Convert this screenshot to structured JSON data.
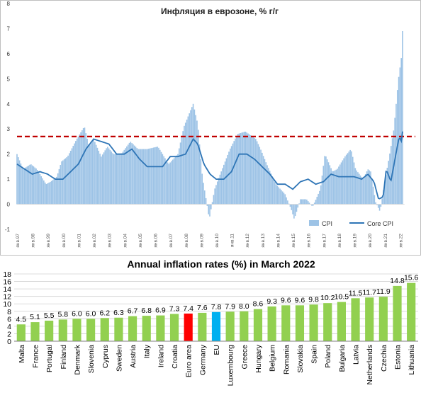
{
  "chart_data": [
    {
      "type": "area",
      "title": "Инфляция в еврозоне, % г/г",
      "xlabel": "",
      "ylabel": "",
      "ylim": [
        -1,
        8
      ],
      "y_ticks": [
        "-1",
        "0",
        "1",
        "2",
        "3",
        "4",
        "5",
        "6",
        "7",
        "8"
      ],
      "x_tick_labels": [
        "янв.97",
        "янв.98",
        "янв.99",
        "янв.00",
        "янв.01",
        "янв.02",
        "янв.03",
        "янв.04",
        "янв.05",
        "янв.06",
        "янв.07",
        "янв.08",
        "янв.09",
        "янв.10",
        "янв.11",
        "янв.12",
        "янв.13",
        "янв.14",
        "янв.15",
        "янв.16",
        "янв.17",
        "янв.18",
        "янв.19",
        "янв.20",
        "янв.21",
        "янв.22"
      ],
      "x_start_year": 1997,
      "reference_line": {
        "value": 2.7,
        "color": "#c00000",
        "style": "dashed"
      },
      "legend": {
        "position": "bottom-right",
        "entries": [
          "CPI",
          "Core CPI"
        ]
      },
      "grid": false,
      "series": [
        {
          "name": "CPI",
          "render": "bars",
          "color": "#9dc3e6",
          "anchors": [
            [
              1997.0,
              2.0
            ],
            [
              1997.4,
              1.4
            ],
            [
              1997.9,
              1.6
            ],
            [
              1998.3,
              1.4
            ],
            [
              1998.9,
              0.8
            ],
            [
              1999.2,
              0.9
            ],
            [
              1999.6,
              1.1
            ],
            [
              1999.9,
              1.7
            ],
            [
              2000.3,
              1.9
            ],
            [
              2000.9,
              2.6
            ],
            [
              2001.4,
              3.1
            ],
            [
              2001.7,
              2.3
            ],
            [
              2002.0,
              2.6
            ],
            [
              2002.5,
              1.9
            ],
            [
              2002.9,
              2.3
            ],
            [
              2003.3,
              2.0
            ],
            [
              2003.8,
              2.0
            ],
            [
              2004.4,
              2.5
            ],
            [
              2004.9,
              2.2
            ],
            [
              2005.5,
              2.2
            ],
            [
              2006.2,
              2.3
            ],
            [
              2006.9,
              1.6
            ],
            [
              2007.5,
              2.0
            ],
            [
              2007.9,
              3.1
            ],
            [
              2008.5,
              4.0
            ],
            [
              2008.8,
              3.2
            ],
            [
              2009.1,
              1.1
            ],
            [
              2009.4,
              0.0
            ],
            [
              2009.55,
              -0.6
            ],
            [
              2009.9,
              0.6
            ],
            [
              2010.2,
              1.1
            ],
            [
              2010.9,
              2.2
            ],
            [
              2011.4,
              2.8
            ],
            [
              2011.9,
              2.9
            ],
            [
              2012.6,
              2.6
            ],
            [
              2012.9,
              2.2
            ],
            [
              2013.3,
              1.6
            ],
            [
              2013.9,
              0.8
            ],
            [
              2014.5,
              0.4
            ],
            [
              2014.9,
              -0.2
            ],
            [
              2015.1,
              -0.6
            ],
            [
              2015.5,
              0.2
            ],
            [
              2015.9,
              0.2
            ],
            [
              2016.3,
              -0.1
            ],
            [
              2016.8,
              0.6
            ],
            [
              2017.1,
              2.0
            ],
            [
              2017.6,
              1.3
            ],
            [
              2017.9,
              1.4
            ],
            [
              2018.4,
              1.9
            ],
            [
              2018.8,
              2.2
            ],
            [
              2019.1,
              1.4
            ],
            [
              2019.6,
              1.0
            ],
            [
              2019.9,
              1.4
            ],
            [
              2020.1,
              1.3
            ],
            [
              2020.4,
              0.1
            ],
            [
              2020.7,
              -0.3
            ],
            [
              2021.0,
              0.9
            ],
            [
              2021.3,
              1.9
            ],
            [
              2021.6,
              3.0
            ],
            [
              2021.9,
              5.0
            ],
            [
              2022.1,
              5.9
            ],
            [
              2022.2,
              7.4
            ]
          ]
        },
        {
          "name": "Core CPI",
          "render": "line",
          "color": "#2e75b6",
          "anchors": [
            [
              1997.0,
              1.6
            ],
            [
              1997.5,
              1.4
            ],
            [
              1998.0,
              1.2
            ],
            [
              1998.5,
              1.3
            ],
            [
              1999.0,
              1.2
            ],
            [
              1999.5,
              1.0
            ],
            [
              2000.0,
              1.0
            ],
            [
              2000.5,
              1.3
            ],
            [
              2001.0,
              1.6
            ],
            [
              2001.5,
              2.2
            ],
            [
              2002.0,
              2.6
            ],
            [
              2002.5,
              2.5
            ],
            [
              2003.0,
              2.4
            ],
            [
              2003.5,
              2.0
            ],
            [
              2004.0,
              2.0
            ],
            [
              2004.5,
              2.2
            ],
            [
              2005.0,
              1.8
            ],
            [
              2005.5,
              1.5
            ],
            [
              2006.0,
              1.5
            ],
            [
              2006.5,
              1.5
            ],
            [
              2007.0,
              1.9
            ],
            [
              2007.5,
              1.9
            ],
            [
              2008.0,
              2.0
            ],
            [
              2008.5,
              2.6
            ],
            [
              2008.8,
              2.4
            ],
            [
              2009.2,
              1.6
            ],
            [
              2009.6,
              1.2
            ],
            [
              2010.0,
              1.0
            ],
            [
              2010.5,
              1.0
            ],
            [
              2011.0,
              1.3
            ],
            [
              2011.5,
              2.0
            ],
            [
              2012.0,
              2.0
            ],
            [
              2012.5,
              1.8
            ],
            [
              2013.0,
              1.5
            ],
            [
              2013.5,
              1.2
            ],
            [
              2014.0,
              0.8
            ],
            [
              2014.5,
              0.8
            ],
            [
              2015.0,
              0.6
            ],
            [
              2015.5,
              0.9
            ],
            [
              2016.0,
              1.0
            ],
            [
              2016.5,
              0.8
            ],
            [
              2017.0,
              0.9
            ],
            [
              2017.5,
              1.2
            ],
            [
              2018.0,
              1.1
            ],
            [
              2018.5,
              1.1
            ],
            [
              2019.0,
              1.1
            ],
            [
              2019.5,
              1.0
            ],
            [
              2019.9,
              1.2
            ],
            [
              2020.3,
              0.9
            ],
            [
              2020.6,
              0.2
            ],
            [
              2020.9,
              0.3
            ],
            [
              2021.1,
              1.4
            ],
            [
              2021.4,
              0.9
            ],
            [
              2021.7,
              1.9
            ],
            [
              2021.95,
              2.7
            ],
            [
              2022.1,
              2.5
            ],
            [
              2022.2,
              3.1
            ]
          ]
        }
      ]
    },
    {
      "type": "bar",
      "title": "Annual inflation rates (%) in March 2022",
      "xlabel": "",
      "ylabel": "",
      "ylim": [
        0,
        18
      ],
      "y_ticks": [
        "0",
        "2",
        "4",
        "6",
        "8",
        "10",
        "12",
        "14",
        "16",
        "18"
      ],
      "grid": true,
      "categories": [
        "Malta",
        "France",
        "Portugal",
        "Finland",
        "Denmark",
        "Slovenia",
        "Cyprus",
        "Sweden",
        "Austria",
        "Italy",
        "Ireland",
        "Croatia",
        "Euro area",
        "Germany",
        "EU",
        "Luxembourg",
        "Greece",
        "Hungary",
        "Belgium",
        "Romania",
        "Slovakia",
        "Spain",
        "Poland",
        "Bulgaria",
        "Latvia",
        "Netherlands",
        "Czechia",
        "Estonia",
        "Lithuania"
      ],
      "values": [
        4.5,
        5.1,
        5.5,
        5.8,
        6.0,
        6.0,
        6.2,
        6.3,
        6.7,
        6.8,
        6.9,
        7.3,
        7.4,
        7.6,
        7.8,
        7.9,
        8.0,
        8.6,
        9.3,
        9.6,
        9.6,
        9.8,
        10.2,
        10.5,
        11.5,
        11.7,
        11.9,
        14.8,
        15.6
      ],
      "value_labels": [
        "4.5",
        "5.1",
        "5.5",
        "5.8",
        "6.0",
        "6.0",
        "6.2",
        "6.3",
        "6.7",
        "6.8",
        "6.9",
        "7.3",
        "7.4",
        "7.6",
        "7.8",
        "7.9",
        "8.0",
        "8.6",
        "9.3",
        "9.6",
        "9.6",
        "9.8",
        "10.2",
        "10.5",
        "11.5",
        "11.7",
        "11.9",
        "14.8",
        "15.6"
      ],
      "colors": {
        "default": "#92d050",
        "Euro area": "#ff0000",
        "EU": "#00b0f0"
      }
    }
  ]
}
